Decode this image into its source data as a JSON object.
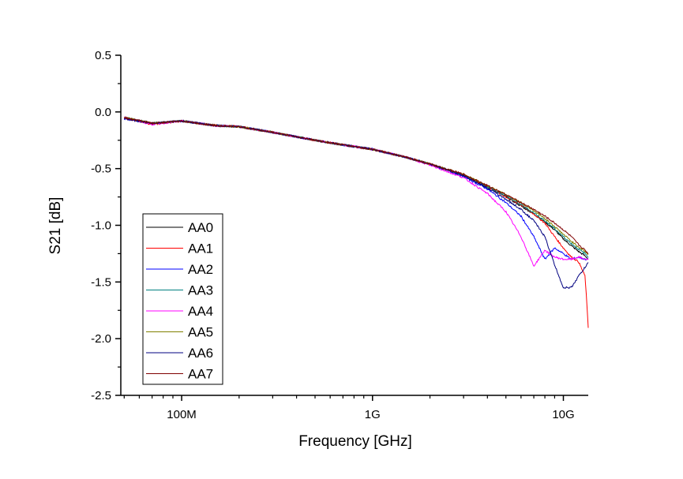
{
  "chart_data": {
    "type": "line",
    "title": "",
    "xlabel": "Frequency [GHz]",
    "ylabel": "S21 [dB]",
    "xscale": "log",
    "xlim": [
      0.048,
      13.5
    ],
    "ylim": [
      -2.5,
      0.5
    ],
    "grid": false,
    "legend_position": "bottom-left",
    "x_ticks": [
      {
        "value": 0.1,
        "label": "100M"
      },
      {
        "value": 1,
        "label": "1G"
      },
      {
        "value": 10,
        "label": "10G"
      }
    ],
    "y_ticks": [
      {
        "value": 0.5,
        "label": "0.5"
      },
      {
        "value": 0.0,
        "label": "0.0"
      },
      {
        "value": -0.5,
        "label": "-0.5"
      },
      {
        "value": -1.0,
        "label": "-1.0"
      },
      {
        "value": -1.5,
        "label": "-1.5"
      },
      {
        "value": -2.0,
        "label": "-2.0"
      },
      {
        "value": -2.5,
        "label": "-2.5"
      }
    ],
    "x": [
      0.05,
      0.07,
      0.1,
      0.15,
      0.2,
      0.3,
      0.5,
      0.7,
      1,
      1.5,
      2,
      3,
      4,
      5,
      6,
      7,
      8,
      9,
      10,
      11,
      12,
      13,
      13.5
    ],
    "series": [
      {
        "name": "AA0",
        "color": "#000000",
        "values": [
          -0.05,
          -0.1,
          -0.08,
          -0.12,
          -0.13,
          -0.18,
          -0.25,
          -0.29,
          -0.33,
          -0.4,
          -0.46,
          -0.56,
          -0.66,
          -0.75,
          -0.83,
          -0.9,
          -0.97,
          -1.04,
          -1.12,
          -1.18,
          -1.23,
          -1.27,
          -1.3
        ]
      },
      {
        "name": "AA1",
        "color": "#ff0000",
        "values": [
          -0.05,
          -0.11,
          -0.08,
          -0.12,
          -0.13,
          -0.18,
          -0.25,
          -0.29,
          -0.33,
          -0.4,
          -0.46,
          -0.56,
          -0.66,
          -0.75,
          -0.82,
          -0.9,
          -0.98,
          -1.1,
          -1.2,
          -1.28,
          -1.32,
          -1.45,
          -1.9
        ]
      },
      {
        "name": "AA2",
        "color": "#0000ff",
        "values": [
          -0.06,
          -0.1,
          -0.08,
          -0.12,
          -0.13,
          -0.18,
          -0.25,
          -0.29,
          -0.33,
          -0.4,
          -0.46,
          -0.57,
          -0.68,
          -0.8,
          -0.92,
          -1.1,
          -1.3,
          -1.2,
          -1.25,
          -1.3,
          -1.28,
          -1.3,
          -1.3
        ]
      },
      {
        "name": "AA3",
        "color": "#008080",
        "values": [
          -0.05,
          -0.1,
          -0.08,
          -0.12,
          -0.13,
          -0.18,
          -0.25,
          -0.29,
          -0.33,
          -0.4,
          -0.46,
          -0.56,
          -0.66,
          -0.74,
          -0.82,
          -0.89,
          -0.96,
          -1.03,
          -1.1,
          -1.16,
          -1.21,
          -1.25,
          -1.28
        ]
      },
      {
        "name": "AA4",
        "color": "#ff00ff",
        "values": [
          -0.05,
          -0.11,
          -0.08,
          -0.12,
          -0.13,
          -0.18,
          -0.25,
          -0.29,
          -0.33,
          -0.4,
          -0.47,
          -0.58,
          -0.72,
          -0.88,
          -1.1,
          -1.36,
          -1.22,
          -1.28,
          -1.3,
          -1.3,
          -1.28,
          -1.3,
          -1.3
        ]
      },
      {
        "name": "AA5",
        "color": "#808000",
        "values": [
          -0.05,
          -0.1,
          -0.08,
          -0.12,
          -0.13,
          -0.18,
          -0.25,
          -0.29,
          -0.33,
          -0.4,
          -0.46,
          -0.55,
          -0.65,
          -0.73,
          -0.8,
          -0.87,
          -0.94,
          -1.01,
          -1.08,
          -1.14,
          -1.19,
          -1.23,
          -1.26
        ]
      },
      {
        "name": "AA6",
        "color": "#000080",
        "values": [
          -0.06,
          -0.1,
          -0.08,
          -0.12,
          -0.13,
          -0.18,
          -0.25,
          -0.29,
          -0.33,
          -0.4,
          -0.46,
          -0.56,
          -0.67,
          -0.77,
          -0.86,
          -0.96,
          -1.1,
          -1.35,
          -1.55,
          -1.55,
          -1.45,
          -1.37,
          -1.33
        ]
      },
      {
        "name": "AA7",
        "color": "#800000",
        "values": [
          -0.05,
          -0.1,
          -0.08,
          -0.12,
          -0.13,
          -0.18,
          -0.25,
          -0.29,
          -0.33,
          -0.4,
          -0.46,
          -0.55,
          -0.65,
          -0.73,
          -0.8,
          -0.86,
          -0.92,
          -0.98,
          -1.04,
          -1.1,
          -1.17,
          -1.22,
          -1.25
        ]
      }
    ]
  }
}
